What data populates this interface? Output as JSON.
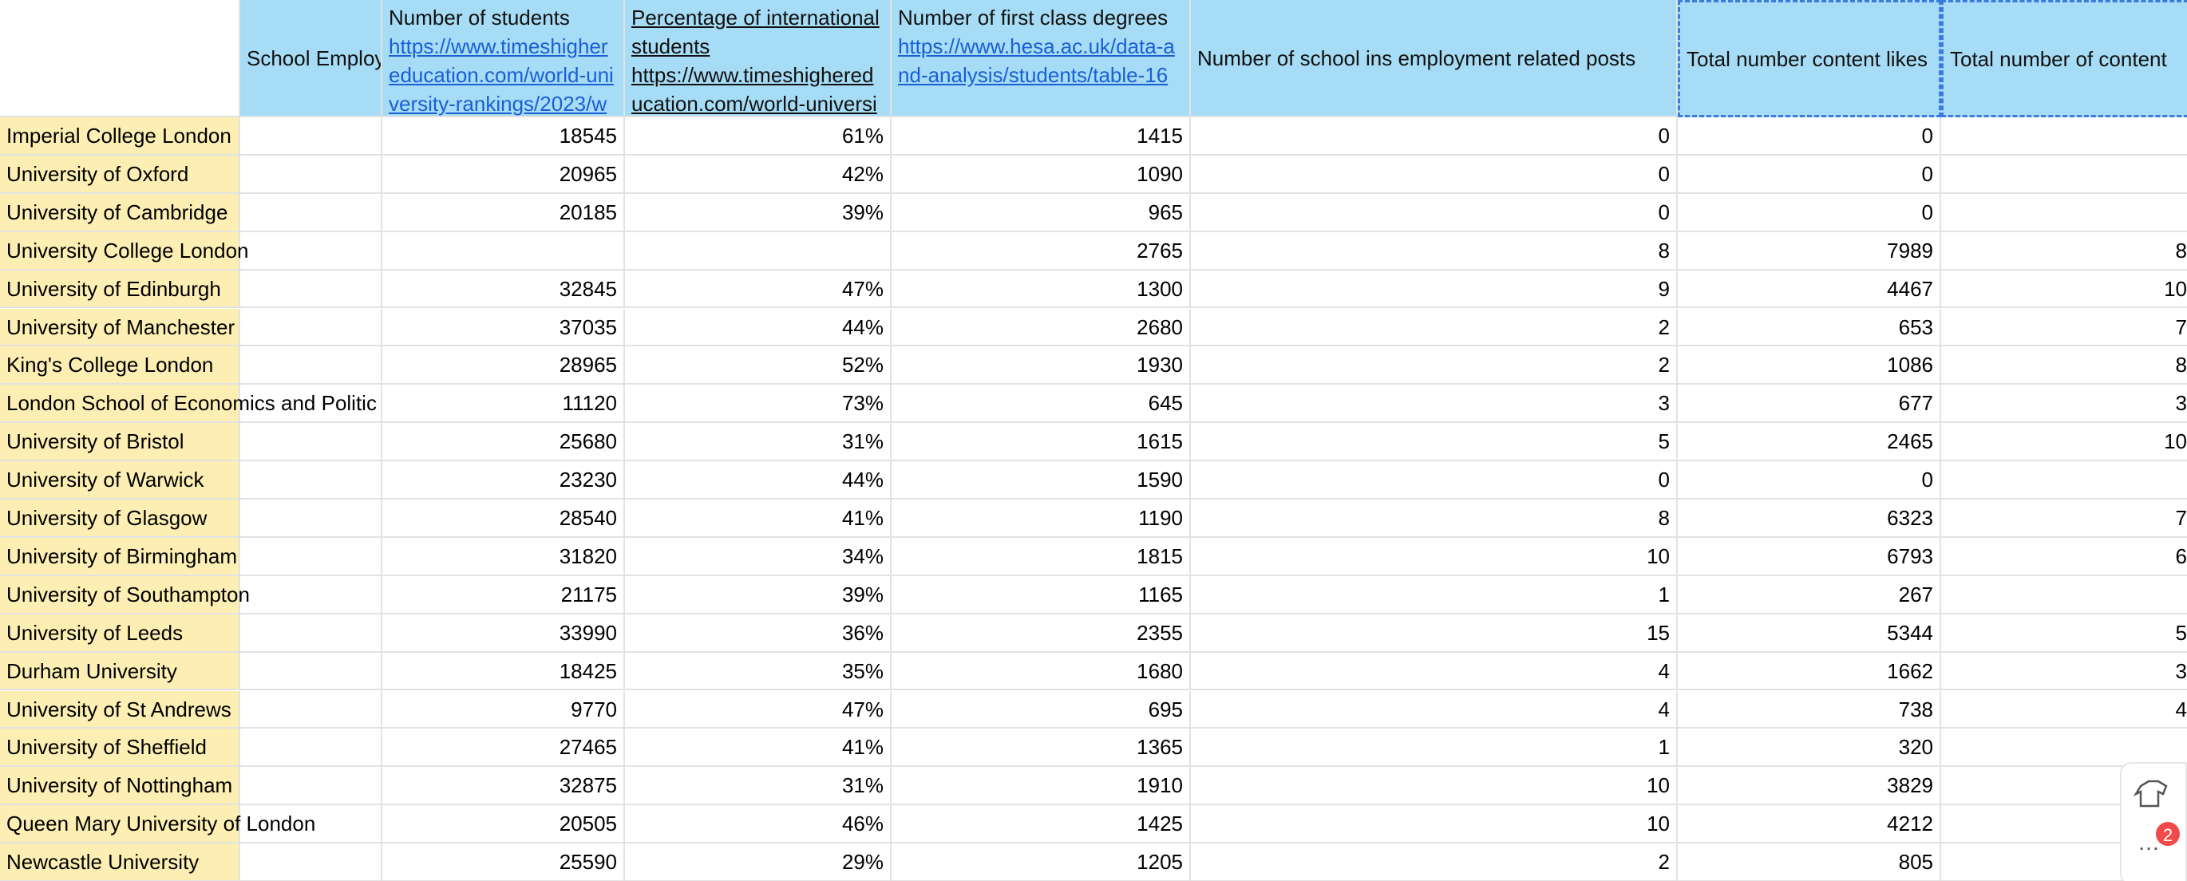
{
  "table": {
    "header": [
      "School Employ",
      {
        "title": "Number of students",
        "link": "https://www.timeshighereducation.com/world-university-rankings/2023/w"
      },
      {
        "title": "Percentage of international students",
        "link": "https://www.timeshighereducation.com/world-universi"
      },
      {
        "title": "Number of first class degrees",
        "link": "https://www.hesa.ac.uk/data-and-analysis/students/table-16"
      },
      "Number of school ins employment related posts",
      "Total number content likes",
      "Total number of content"
    ],
    "rows": [
      [
        "Imperial College London",
        null,
        18545,
        "61%",
        1415,
        0,
        0,
        null
      ],
      [
        "University of Oxford",
        null,
        20965,
        "42%",
        1090,
        0,
        0,
        null
      ],
      [
        "University of Cambridge",
        null,
        20185,
        "39%",
        965,
        0,
        0,
        null
      ],
      [
        "University College London",
        null,
        null,
        null,
        2765,
        8,
        7989,
        "8"
      ],
      [
        "University of Edinburgh",
        null,
        32845,
        "47%",
        1300,
        9,
        4467,
        "10"
      ],
      [
        "University of Manchester",
        null,
        37035,
        "44%",
        2680,
        2,
        653,
        "7"
      ],
      [
        "King's College London",
        null,
        28965,
        "52%",
        1930,
        2,
        1086,
        "8"
      ],
      [
        "London School of Economics and Politic",
        null,
        11120,
        "73%",
        645,
        3,
        677,
        "3"
      ],
      [
        "University of Bristol",
        null,
        25680,
        "31%",
        1615,
        5,
        2465,
        "10"
      ],
      [
        "University of Warwick",
        null,
        23230,
        "44%",
        1590,
        0,
        0,
        null
      ],
      [
        "University of Glasgow",
        null,
        28540,
        "41%",
        1190,
        8,
        6323,
        "7"
      ],
      [
        "University of Birmingham",
        null,
        31820,
        "34%",
        1815,
        10,
        6793,
        "6"
      ],
      [
        "University of Southampton",
        null,
        21175,
        "39%",
        1165,
        1,
        267,
        null
      ],
      [
        "University of Leeds",
        null,
        33990,
        "36%",
        2355,
        15,
        5344,
        "5"
      ],
      [
        "Durham University",
        null,
        18425,
        "35%",
        1680,
        4,
        1662,
        "3"
      ],
      [
        "University of St Andrews",
        null,
        9770,
        "47%",
        695,
        4,
        738,
        "4"
      ],
      [
        "University of Sheffield",
        null,
        27465,
        "41%",
        1365,
        1,
        320,
        null
      ],
      [
        "University of Nottingham",
        null,
        32875,
        "31%",
        1910,
        10,
        3829,
        null
      ],
      [
        "Queen Mary University of London",
        null,
        20505,
        "46%",
        1425,
        10,
        4212,
        null
      ],
      [
        "Newcastle University",
        null,
        25590,
        "29%",
        1205,
        2,
        805,
        null
      ]
    ]
  },
  "widget": {
    "badge": "2"
  }
}
